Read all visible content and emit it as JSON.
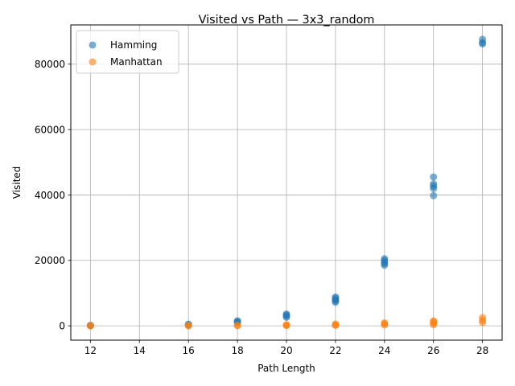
{
  "chart_data": {
    "type": "scatter",
    "title": "Visited vs Path — 3x3_random",
    "xlabel": "Path Length",
    "ylabel": "Visited",
    "xlim": [
      11.2,
      28.8
    ],
    "ylim": [
      -4400,
      92000
    ],
    "xticks": [
      12,
      14,
      16,
      18,
      20,
      22,
      24,
      26,
      28
    ],
    "yticks": [
      0,
      20000,
      40000,
      60000,
      80000
    ],
    "grid": true,
    "legend_position": "upper-left",
    "series": [
      {
        "name": "Hamming",
        "color": "#1f77b4",
        "points": [
          [
            12,
            60
          ],
          [
            12,
            120
          ],
          [
            16,
            300
          ],
          [
            16,
            500
          ],
          [
            18,
            1000
          ],
          [
            18,
            1300
          ],
          [
            18,
            1500
          ],
          [
            20,
            2600
          ],
          [
            20,
            3000
          ],
          [
            20,
            3300
          ],
          [
            20,
            3600
          ],
          [
            22,
            7200
          ],
          [
            22,
            7600
          ],
          [
            22,
            8000
          ],
          [
            22,
            8400
          ],
          [
            22,
            8800
          ],
          [
            24,
            18500
          ],
          [
            24,
            19000
          ],
          [
            24,
            19500
          ],
          [
            24,
            20000
          ],
          [
            24,
            20500
          ],
          [
            26,
            39800
          ],
          [
            26,
            42000
          ],
          [
            26,
            42700
          ],
          [
            26,
            43400
          ],
          [
            26,
            45500
          ],
          [
            28,
            86200
          ],
          [
            28,
            86600
          ],
          [
            28,
            87600
          ]
        ]
      },
      {
        "name": "Manhattan",
        "color": "#ff7f0e",
        "points": [
          [
            12,
            10
          ],
          [
            12,
            30
          ],
          [
            16,
            20
          ],
          [
            16,
            60
          ],
          [
            18,
            40
          ],
          [
            18,
            120
          ],
          [
            20,
            80
          ],
          [
            20,
            180
          ],
          [
            20,
            260
          ],
          [
            22,
            120
          ],
          [
            22,
            300
          ],
          [
            22,
            500
          ],
          [
            24,
            250
          ],
          [
            24,
            600
          ],
          [
            24,
            900
          ],
          [
            26,
            300
          ],
          [
            26,
            800
          ],
          [
            26,
            1200
          ],
          [
            26,
            1500
          ],
          [
            28,
            1000
          ],
          [
            28,
            1700
          ],
          [
            28,
            2500
          ]
        ]
      }
    ]
  }
}
